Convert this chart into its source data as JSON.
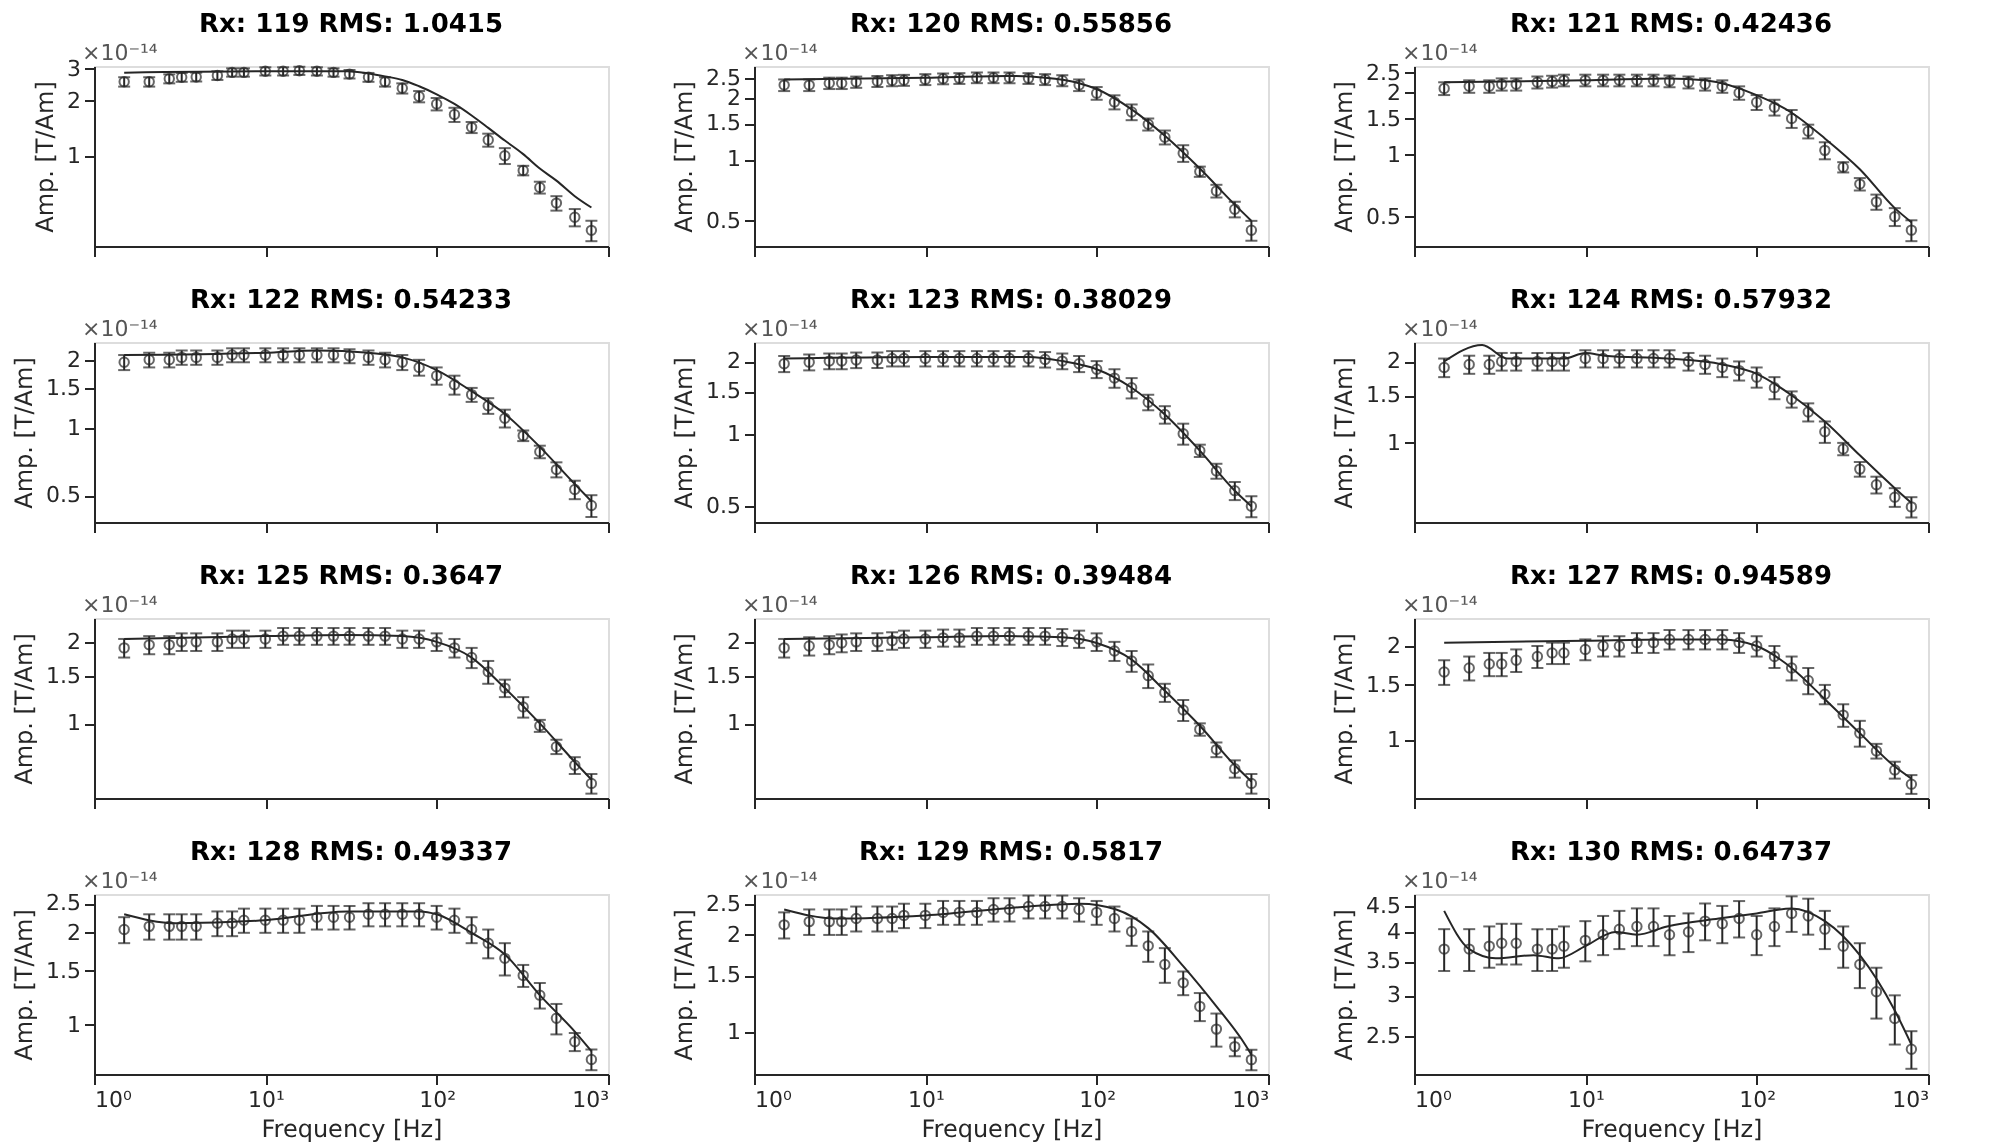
{
  "chart_data": [
    {
      "type": "scatter",
      "title": "Rx: 119 RMS: 1.0415",
      "ylabel": "Amp. [T/Am]",
      "annotations": [
        "×10⁻¹⁴"
      ],
      "log": "xy",
      "grid": false,
      "tick_labels": "y",
      "xlim": [
        1,
        1000
      ],
      "xticks": [
        {
          "value": 1,
          "label": null
        },
        {
          "value": 10,
          "label": null
        },
        {
          "value": 100,
          "label": null
        },
        {
          "value": 1000,
          "label": null
        }
      ],
      "ylim": [
        0.32,
        3.1
      ],
      "yticks": [
        1,
        2,
        3
      ],
      "x": [
        1.5,
        2.1,
        2.75,
        3.25,
        3.95,
        5.25,
        6.4,
        7.5,
        10,
        12.7,
        15.8,
        20,
        25,
        31,
        40,
        50,
        63,
        79,
        100,
        127,
        160,
        200,
        250,
        320,
        400,
        500,
        640,
        800
      ],
      "series": [
        {
          "type": "scatter",
          "marker": "circle",
          "color": "#262626",
          "values": [
            2.54,
            2.54,
            2.64,
            2.69,
            2.7,
            2.75,
            2.86,
            2.86,
            2.9,
            2.9,
            2.92,
            2.9,
            2.86,
            2.8,
            2.69,
            2.54,
            2.34,
            2.11,
            1.92,
            1.68,
            1.43,
            1.22,
            1.0,
            0.83,
            0.67,
            0.55,
            0.46,
            0.39
          ],
          "errors": [
            0.15,
            0.15,
            0.15,
            0.15,
            0.15,
            0.15,
            0.15,
            0.15,
            0.15,
            0.15,
            0.15,
            0.15,
            0.15,
            0.15,
            0.15,
            0.15,
            0.15,
            0.15,
            0.15,
            0.15,
            0.1,
            0.1,
            0.1,
            0.05,
            0.05,
            0.05,
            0.05,
            0.05
          ]
        },
        {
          "type": "line",
          "color": "#262626",
          "x": [
            1.5,
            10,
            30,
            40,
            50,
            63,
            79,
            100,
            127,
            160,
            200,
            250,
            320,
            400,
            500,
            640,
            800
          ],
          "values": [
            2.85,
            2.9,
            2.9,
            2.82,
            2.72,
            2.6,
            2.4,
            2.17,
            1.92,
            1.66,
            1.42,
            1.21,
            1.02,
            0.85,
            0.73,
            0.6,
            0.52
          ]
        }
      ]
    },
    {
      "type": "scatter",
      "title": "Rx: 120 RMS: 0.55856",
      "ylabel": "Amp. [T/Am]",
      "annotations": [
        "×10⁻¹⁴"
      ],
      "log": "xy",
      "grid": false,
      "tick_labels": "y",
      "xlim": [
        1,
        1000
      ],
      "xticks": [
        {
          "value": 1,
          "label": null
        },
        {
          "value": 10,
          "label": null
        },
        {
          "value": 100,
          "label": null
        },
        {
          "value": 1000,
          "label": null
        }
      ],
      "ylim": [
        0.377,
        2.85
      ],
      "yticks": [
        0.5,
        1,
        1.5,
        2,
        2.5
      ],
      "x": [
        1.5,
        2.1,
        2.75,
        3.25,
        3.95,
        5.25,
        6.4,
        7.5,
        10,
        12.7,
        15.8,
        20,
        25,
        31,
        40,
        50,
        63,
        79,
        100,
        127,
        160,
        200,
        250,
        320,
        400,
        500,
        640,
        800
      ],
      "series": [
        {
          "type": "scatter",
          "marker": "circle",
          "color": "#262626",
          "values": [
            2.3,
            2.3,
            2.35,
            2.35,
            2.38,
            2.4,
            2.42,
            2.43,
            2.45,
            2.47,
            2.48,
            2.5,
            2.5,
            2.5,
            2.48,
            2.45,
            2.42,
            2.3,
            2.1,
            1.9,
            1.7,
            1.48,
            1.28,
            1.07,
            0.87,
            0.7,
            0.57,
            0.45
          ],
          "errors": [
            0.15,
            0.15,
            0.15,
            0.15,
            0.15,
            0.15,
            0.15,
            0.15,
            0.15,
            0.15,
            0.15,
            0.15,
            0.15,
            0.15,
            0.15,
            0.15,
            0.15,
            0.15,
            0.15,
            0.15,
            0.15,
            0.1,
            0.1,
            0.1,
            0.05,
            0.05,
            0.05,
            0.05
          ]
        },
        {
          "type": "line",
          "color": "#262626",
          "x": [
            1.5,
            10,
            30,
            50,
            79,
            100,
            160,
            250,
            400,
            640,
            800
          ],
          "values": [
            2.45,
            2.5,
            2.55,
            2.5,
            2.35,
            2.2,
            1.75,
            1.3,
            0.9,
            0.6,
            0.5
          ]
        }
      ]
    },
    {
      "type": "scatter",
      "title": "Rx: 121 RMS: 0.42436",
      "ylabel": "Amp. [T/Am]",
      "annotations": [
        "×10⁻¹⁴"
      ],
      "log": "xy",
      "grid": false,
      "tick_labels": "y",
      "xlim": [
        1,
        1000
      ],
      "xticks": [
        {
          "value": 1,
          "label": null
        },
        {
          "value": 10,
          "label": null
        },
        {
          "value": 100,
          "label": null
        },
        {
          "value": 1000,
          "label": null
        }
      ],
      "ylim": [
        0.36,
        2.7
      ],
      "yticks": [
        0.5,
        1,
        1.5,
        2,
        2.5
      ],
      "x": [
        1.5,
        2.1,
        2.75,
        3.25,
        3.95,
        5.25,
        6.4,
        7.5,
        10,
        12.7,
        15.8,
        20,
        25,
        31,
        40,
        50,
        63,
        79,
        100,
        127,
        160,
        200,
        250,
        320,
        400,
        500,
        640,
        800
      ],
      "series": [
        {
          "type": "scatter",
          "marker": "circle",
          "color": "#262626",
          "values": [
            2.1,
            2.15,
            2.15,
            2.2,
            2.2,
            2.25,
            2.27,
            2.3,
            2.3,
            2.3,
            2.3,
            2.3,
            2.3,
            2.28,
            2.25,
            2.2,
            2.15,
            2.0,
            1.8,
            1.7,
            1.5,
            1.3,
            1.05,
            0.87,
            0.72,
            0.59,
            0.5,
            0.43
          ],
          "errors": [
            0.15,
            0.15,
            0.15,
            0.15,
            0.15,
            0.15,
            0.15,
            0.15,
            0.15,
            0.15,
            0.15,
            0.15,
            0.15,
            0.15,
            0.15,
            0.15,
            0.15,
            0.15,
            0.15,
            0.15,
            0.15,
            0.1,
            0.1,
            0.05,
            0.05,
            0.05,
            0.05,
            0.05
          ]
        },
        {
          "type": "line",
          "color": "#262626",
          "x": [
            1.5,
            10,
            30,
            50,
            100,
            160,
            250,
            400,
            640,
            800
          ],
          "values": [
            2.25,
            2.3,
            2.35,
            2.3,
            1.95,
            1.6,
            1.2,
            0.85,
            0.55,
            0.47
          ]
        }
      ]
    },
    {
      "type": "scatter",
      "title": "Rx: 122 RMS: 0.54233",
      "ylabel": "Amp. [T/Am]",
      "annotations": [
        "×10⁻¹⁴"
      ],
      "log": "xy",
      "grid": false,
      "tick_labels": "y",
      "xlim": [
        1,
        1000
      ],
      "xticks": [
        {
          "value": 1,
          "label": null
        },
        {
          "value": 10,
          "label": null
        },
        {
          "value": 100,
          "label": null
        },
        {
          "value": 1000,
          "label": null
        }
      ],
      "ylim": [
        0.38,
        2.4
      ],
      "yticks": [
        0.5,
        1,
        1.5,
        2
      ],
      "x": [
        1.5,
        2.1,
        2.75,
        3.25,
        3.95,
        5.25,
        6.4,
        7.5,
        10,
        12.7,
        15.8,
        20,
        25,
        31,
        40,
        50,
        63,
        79,
        100,
        127,
        160,
        200,
        250,
        320,
        400,
        500,
        640,
        800
      ],
      "series": [
        {
          "type": "scatter",
          "marker": "circle",
          "color": "#262626",
          "values": [
            1.95,
            2.0,
            2.0,
            2.05,
            2.05,
            2.05,
            2.1,
            2.1,
            2.1,
            2.1,
            2.1,
            2.1,
            2.1,
            2.08,
            2.05,
            2.0,
            1.95,
            1.85,
            1.7,
            1.55,
            1.4,
            1.25,
            1.1,
            0.92,
            0.78,
            0.65,
            0.53,
            0.45
          ],
          "errors": [
            0.15,
            0.15,
            0.15,
            0.15,
            0.15,
            0.15,
            0.15,
            0.15,
            0.15,
            0.15,
            0.15,
            0.15,
            0.15,
            0.15,
            0.15,
            0.15,
            0.15,
            0.15,
            0.15,
            0.15,
            0.1,
            0.1,
            0.1,
            0.05,
            0.05,
            0.05,
            0.05,
            0.05
          ]
        },
        {
          "type": "line",
          "color": "#262626",
          "x": [
            1.5,
            10,
            20,
            40,
            63,
            100,
            160,
            250,
            400,
            640,
            800
          ],
          "values": [
            2.1,
            2.15,
            2.2,
            2.15,
            2.05,
            1.8,
            1.45,
            1.15,
            0.82,
            0.56,
            0.47
          ]
        }
      ]
    },
    {
      "type": "scatter",
      "title": "Rx: 123 RMS: 0.38029",
      "ylabel": "Amp. [T/Am]",
      "annotations": [
        "×10⁻¹⁴"
      ],
      "log": "xy",
      "grid": false,
      "tick_labels": "y",
      "xlim": [
        1,
        1000
      ],
      "xticks": [
        {
          "value": 1,
          "label": null
        },
        {
          "value": 10,
          "label": null
        },
        {
          "value": 100,
          "label": null
        },
        {
          "value": 1000,
          "label": null
        }
      ],
      "ylim": [
        0.43,
        2.4
      ],
      "yticks": [
        0.5,
        1,
        1.5,
        2
      ],
      "x": [
        1.5,
        2.1,
        2.75,
        3.25,
        3.95,
        5.25,
        6.4,
        7.5,
        10,
        12.7,
        15.8,
        20,
        25,
        31,
        40,
        50,
        63,
        79,
        100,
        127,
        160,
        200,
        250,
        320,
        400,
        500,
        640,
        800
      ],
      "series": [
        {
          "type": "scatter",
          "marker": "circle",
          "color": "#262626",
          "values": [
            1.95,
            1.98,
            2.0,
            2.0,
            2.02,
            2.02,
            2.05,
            2.05,
            2.05,
            2.05,
            2.05,
            2.05,
            2.05,
            2.05,
            2.05,
            2.03,
            2.0,
            1.95,
            1.85,
            1.7,
            1.55,
            1.35,
            1.2,
            1.0,
            0.85,
            0.7,
            0.58,
            0.5
          ],
          "errors": [
            0.15,
            0.15,
            0.15,
            0.15,
            0.15,
            0.15,
            0.15,
            0.15,
            0.15,
            0.15,
            0.15,
            0.15,
            0.15,
            0.15,
            0.15,
            0.15,
            0.15,
            0.15,
            0.15,
            0.15,
            0.15,
            0.1,
            0.1,
            0.1,
            0.05,
            0.05,
            0.05,
            0.05
          ]
        },
        {
          "type": "line",
          "color": "#262626",
          "x": [
            1.5,
            10,
            40,
            63,
            100,
            160,
            250,
            400,
            640,
            800
          ],
          "values": [
            2.05,
            2.08,
            2.08,
            2.0,
            1.85,
            1.55,
            1.2,
            0.85,
            0.58,
            0.5
          ]
        }
      ]
    },
    {
      "type": "scatter",
      "title": "Rx: 124 RMS: 0.57932",
      "ylabel": "Amp. [T/Am]",
      "annotations": [
        "×10⁻¹⁴"
      ],
      "log": "xy",
      "grid": false,
      "tick_labels": "y",
      "xlim": [
        1,
        1000
      ],
      "xticks": [
        {
          "value": 1,
          "label": null
        },
        {
          "value": 10,
          "label": null
        },
        {
          "value": 100,
          "label": null
        },
        {
          "value": 1000,
          "label": null
        }
      ],
      "ylim": [
        0.51,
        2.36
      ],
      "yticks": [
        1,
        1.5,
        2
      ],
      "x": [
        1.5,
        2.1,
        2.75,
        3.25,
        3.95,
        5.25,
        6.4,
        7.5,
        10,
        12.7,
        15.8,
        20,
        25,
        31,
        40,
        50,
        63,
        79,
        100,
        127,
        160,
        200,
        250,
        320,
        400,
        500,
        640,
        800
      ],
      "series": [
        {
          "type": "scatter",
          "marker": "circle",
          "color": "#262626",
          "values": [
            1.9,
            1.95,
            1.95,
            2.0,
            2.0,
            2.0,
            2.0,
            2.0,
            2.05,
            2.05,
            2.05,
            2.05,
            2.05,
            2.05,
            2.0,
            1.95,
            1.9,
            1.85,
            1.75,
            1.6,
            1.45,
            1.3,
            1.1,
            0.95,
            0.8,
            0.7,
            0.63,
            0.58
          ],
          "errors": [
            0.15,
            0.15,
            0.15,
            0.15,
            0.15,
            0.15,
            0.15,
            0.15,
            0.15,
            0.15,
            0.15,
            0.15,
            0.15,
            0.15,
            0.15,
            0.15,
            0.15,
            0.15,
            0.15,
            0.15,
            0.1,
            0.1,
            0.1,
            0.05,
            0.05,
            0.05,
            0.05,
            0.05
          ]
        },
        {
          "type": "line",
          "color": "#262626",
          "x": [
            1.5,
            2.5,
            3.5,
            5,
            7.5,
            10,
            13,
            30,
            63,
            100,
            160,
            250,
            400,
            640,
            800
          ],
          "values": [
            2.0,
            2.3,
            2.05,
            2.05,
            2.05,
            2.15,
            2.1,
            2.05,
            1.95,
            1.8,
            1.5,
            1.2,
            0.9,
            0.68,
            0.6
          ]
        }
      ]
    },
    {
      "type": "scatter",
      "title": "Rx: 125 RMS: 0.3647",
      "ylabel": "Amp. [T/Am]",
      "annotations": [
        "×10⁻¹⁴"
      ],
      "log": "xy",
      "grid": false,
      "tick_labels": "y",
      "xlim": [
        1,
        1000
      ],
      "xticks": [
        {
          "value": 1,
          "label": null
        },
        {
          "value": 10,
          "label": null
        },
        {
          "value": 100,
          "label": null
        },
        {
          "value": 1000,
          "label": null
        }
      ],
      "ylim": [
        0.53,
        2.45
      ],
      "yticks": [
        1,
        1.5,
        2
      ],
      "x": [
        1.5,
        2.1,
        2.75,
        3.25,
        3.95,
        5.25,
        6.4,
        7.5,
        10,
        12.7,
        15.8,
        20,
        25,
        31,
        40,
        50,
        63,
        79,
        100,
        127,
        160,
        200,
        250,
        320,
        400,
        500,
        640,
        800
      ],
      "series": [
        {
          "type": "scatter",
          "marker": "circle",
          "color": "#262626",
          "values": [
            1.9,
            1.95,
            1.95,
            2.0,
            2.0,
            2.0,
            2.05,
            2.05,
            2.05,
            2.1,
            2.1,
            2.1,
            2.1,
            2.1,
            2.1,
            2.1,
            2.05,
            2.05,
            2.0,
            1.9,
            1.75,
            1.55,
            1.35,
            1.15,
            0.98,
            0.82,
            0.7,
            0.6
          ],
          "errors": [
            0.15,
            0.15,
            0.15,
            0.15,
            0.15,
            0.15,
            0.15,
            0.15,
            0.15,
            0.15,
            0.15,
            0.15,
            0.15,
            0.15,
            0.15,
            0.15,
            0.15,
            0.15,
            0.15,
            0.15,
            0.15,
            0.15,
            0.1,
            0.1,
            0.05,
            0.05,
            0.05,
            0.05
          ]
        },
        {
          "type": "line",
          "color": "#262626",
          "x": [
            1.5,
            10,
            30,
            63,
            100,
            160,
            250,
            400,
            640,
            800
          ],
          "values": [
            2.05,
            2.1,
            2.12,
            2.1,
            2.0,
            1.75,
            1.35,
            1.0,
            0.72,
            0.62
          ]
        }
      ]
    },
    {
      "type": "scatter",
      "title": "Rx: 126 RMS: 0.39484",
      "ylabel": "Amp. [T/Am]",
      "annotations": [
        "×10⁻¹⁴"
      ],
      "log": "xy",
      "grid": false,
      "tick_labels": "y",
      "xlim": [
        1,
        1000
      ],
      "xticks": [
        {
          "value": 1,
          "label": null
        },
        {
          "value": 10,
          "label": null
        },
        {
          "value": 100,
          "label": null
        },
        {
          "value": 1000,
          "label": null
        }
      ],
      "ylim": [
        0.53,
        2.45
      ],
      "yticks": [
        1,
        1.5,
        2
      ],
      "x": [
        1.5,
        2.1,
        2.75,
        3.25,
        3.95,
        5.25,
        6.4,
        7.5,
        10,
        12.7,
        15.8,
        20,
        25,
        31,
        40,
        50,
        63,
        79,
        100,
        127,
        160,
        200,
        250,
        320,
        400,
        500,
        640,
        800
      ],
      "series": [
        {
          "type": "scatter",
          "marker": "circle",
          "color": "#262626",
          "values": [
            1.9,
            1.93,
            1.95,
            1.98,
            2.0,
            2.0,
            2.02,
            2.05,
            2.05,
            2.07,
            2.07,
            2.1,
            2.1,
            2.1,
            2.1,
            2.1,
            2.08,
            2.05,
            2.0,
            1.85,
            1.7,
            1.5,
            1.3,
            1.12,
            0.95,
            0.8,
            0.68,
            0.6
          ],
          "errors": [
            0.15,
            0.15,
            0.15,
            0.15,
            0.15,
            0.15,
            0.15,
            0.15,
            0.15,
            0.15,
            0.15,
            0.15,
            0.15,
            0.15,
            0.15,
            0.15,
            0.15,
            0.15,
            0.15,
            0.15,
            0.15,
            0.15,
            0.1,
            0.1,
            0.05,
            0.05,
            0.05,
            0.05
          ]
        },
        {
          "type": "line",
          "color": "#262626",
          "x": [
            1.5,
            10,
            30,
            63,
            100,
            160,
            250,
            400,
            640,
            800
          ],
          "values": [
            2.05,
            2.08,
            2.1,
            2.08,
            1.98,
            1.72,
            1.32,
            0.98,
            0.7,
            0.61
          ]
        }
      ]
    },
    {
      "type": "scatter",
      "title": "Rx: 127 RMS: 0.94589",
      "ylabel": "Amp. [T/Am]",
      "annotations": [
        "×10⁻¹⁴"
      ],
      "log": "xy",
      "grid": false,
      "tick_labels": "y",
      "xlim": [
        1,
        1000
      ],
      "xticks": [
        {
          "value": 1,
          "label": null
        },
        {
          "value": 10,
          "label": null
        },
        {
          "value": 100,
          "label": null
        },
        {
          "value": 1000,
          "label": null
        }
      ],
      "ylim": [
        0.65,
        2.46
      ],
      "yticks": [
        1,
        1.5,
        2
      ],
      "x": [
        1.5,
        2.1,
        2.75,
        3.25,
        3.95,
        5.25,
        6.4,
        7.5,
        10,
        12.7,
        15.8,
        20,
        25,
        31,
        40,
        50,
        63,
        79,
        100,
        127,
        160,
        200,
        250,
        320,
        400,
        500,
        640,
        800
      ],
      "series": [
        {
          "type": "scatter",
          "marker": "circle",
          "color": "#262626",
          "values": [
            1.65,
            1.7,
            1.75,
            1.75,
            1.8,
            1.85,
            1.9,
            1.9,
            1.95,
            2.0,
            2.0,
            2.05,
            2.05,
            2.1,
            2.1,
            2.1,
            2.1,
            2.05,
            2.0,
            1.85,
            1.7,
            1.55,
            1.4,
            1.2,
            1.05,
            0.92,
            0.8,
            0.72
          ],
          "errors": [
            0.15,
            0.15,
            0.15,
            0.15,
            0.15,
            0.15,
            0.15,
            0.15,
            0.15,
            0.15,
            0.15,
            0.15,
            0.15,
            0.15,
            0.15,
            0.15,
            0.15,
            0.15,
            0.15,
            0.15,
            0.15,
            0.15,
            0.1,
            0.1,
            0.1,
            0.05,
            0.05,
            0.05
          ]
        },
        {
          "type": "line",
          "color": "#262626",
          "x": [
            1.5,
            10,
            30,
            63,
            100,
            160,
            250,
            400,
            640,
            800
          ],
          "values": [
            2.05,
            2.08,
            2.1,
            2.1,
            2.0,
            1.7,
            1.35,
            1.05,
            0.82,
            0.75
          ]
        }
      ]
    },
    {
      "type": "scatter",
      "title": "Rx: 128 RMS: 0.49337",
      "ylabel": "Amp. [T/Am]",
      "xlabel": "Frequency [Hz]",
      "annotations": [
        "×10⁻¹⁴"
      ],
      "log": "xy",
      "grid": false,
      "xlim": [
        1,
        1000
      ],
      "xticks": [
        {
          "value": 1,
          "label": "10⁰"
        },
        {
          "value": 10,
          "label": "10¹"
        },
        {
          "value": 100,
          "label": "10²"
        },
        {
          "value": 1000,
          "label": "10³"
        }
      ],
      "ylim": [
        0.69,
        2.68
      ],
      "yticks": [
        1,
        1.5,
        2,
        2.5
      ],
      "x": [
        1.5,
        2.1,
        2.75,
        3.25,
        3.95,
        5.25,
        6.4,
        7.5,
        10,
        12.7,
        15.8,
        20,
        25,
        31,
        40,
        50,
        63,
        79,
        100,
        127,
        160,
        200,
        250,
        320,
        400,
        500,
        640,
        800
      ],
      "series": [
        {
          "type": "scatter",
          "marker": "circle",
          "color": "#262626",
          "values": [
            2.05,
            2.1,
            2.1,
            2.1,
            2.1,
            2.15,
            2.15,
            2.2,
            2.2,
            2.2,
            2.2,
            2.25,
            2.25,
            2.25,
            2.3,
            2.3,
            2.3,
            2.3,
            2.25,
            2.2,
            2.05,
            1.85,
            1.65,
            1.45,
            1.25,
            1.05,
            0.88,
            0.77
          ],
          "errors": [
            0.2,
            0.2,
            0.2,
            0.2,
            0.2,
            0.2,
            0.2,
            0.2,
            0.2,
            0.2,
            0.2,
            0.2,
            0.2,
            0.2,
            0.2,
            0.2,
            0.2,
            0.2,
            0.2,
            0.2,
            0.2,
            0.2,
            0.2,
            0.12,
            0.12,
            0.12,
            0.06,
            0.06
          ]
        },
        {
          "type": "line",
          "color": "#262626",
          "x": [
            1.5,
            3,
            10,
            30,
            80,
            100,
            160,
            250,
            400,
            640,
            800
          ],
          "values": [
            2.3,
            2.15,
            2.2,
            2.35,
            2.35,
            2.3,
            2.0,
            1.7,
            1.25,
            0.95,
            0.82
          ]
        }
      ]
    },
    {
      "type": "scatter",
      "title": "Rx: 129 RMS: 0.5817",
      "ylabel": "Amp. [T/Am]",
      "xlabel": "Frequency [Hz]",
      "annotations": [
        "×10⁻¹⁴"
      ],
      "log": "xy",
      "grid": false,
      "xlim": [
        1,
        1000
      ],
      "xticks": [
        {
          "value": 1,
          "label": "10⁰"
        },
        {
          "value": 10,
          "label": "10¹"
        },
        {
          "value": 100,
          "label": "10²"
        },
        {
          "value": 1000,
          "label": "10³"
        }
      ],
      "ylim": [
        0.74,
        2.68
      ],
      "yticks": [
        1,
        1.5,
        2,
        2.5
      ],
      "x": [
        1.5,
        2.1,
        2.75,
        3.25,
        3.95,
        5.25,
        6.4,
        7.5,
        10,
        12.7,
        15.8,
        20,
        25,
        31,
        40,
        50,
        63,
        79,
        100,
        127,
        160,
        200,
        250,
        320,
        400,
        500,
        640,
        800
      ],
      "series": [
        {
          "type": "scatter",
          "marker": "circle",
          "color": "#262626",
          "values": [
            2.15,
            2.2,
            2.2,
            2.2,
            2.25,
            2.25,
            2.25,
            2.3,
            2.3,
            2.35,
            2.35,
            2.35,
            2.4,
            2.4,
            2.45,
            2.45,
            2.45,
            2.4,
            2.35,
            2.25,
            2.05,
            1.85,
            1.62,
            1.42,
            1.2,
            1.02,
            0.9,
            0.82
          ],
          "errors": [
            0.2,
            0.2,
            0.2,
            0.2,
            0.2,
            0.2,
            0.2,
            0.2,
            0.2,
            0.2,
            0.2,
            0.2,
            0.2,
            0.2,
            0.2,
            0.2,
            0.2,
            0.2,
            0.2,
            0.2,
            0.2,
            0.2,
            0.2,
            0.12,
            0.12,
            0.12,
            0.06,
            0.06
          ]
        },
        {
          "type": "line",
          "color": "#262626",
          "x": [
            1.5,
            3,
            10,
            40,
            80,
            130,
            200,
            320,
            500,
            700,
            800
          ],
          "values": [
            2.4,
            2.25,
            2.3,
            2.45,
            2.5,
            2.4,
            2.1,
            1.6,
            1.2,
            0.95,
            0.85
          ]
        }
      ]
    },
    {
      "type": "scatter",
      "title": "Rx: 130 RMS: 0.64737",
      "ylabel": "Amp. [T/Am]",
      "xlabel": "Frequency [Hz]",
      "annotations": [
        "×10⁻¹⁴"
      ],
      "log": "xy",
      "grid": false,
      "xlim": [
        1,
        1000
      ],
      "xticks": [
        {
          "value": 1,
          "label": "10⁰"
        },
        {
          "value": 10,
          "label": "10¹"
        },
        {
          "value": 100,
          "label": "10²"
        },
        {
          "value": 1000,
          "label": "10³"
        }
      ],
      "ylim": [
        2.1,
        4.75
      ],
      "yticks": [
        2.5,
        3,
        3.5,
        4,
        4.5
      ],
      "x": [
        1.5,
        2.1,
        2.75,
        3.25,
        3.95,
        5.25,
        6.4,
        7.5,
        10,
        12.7,
        15.8,
        20,
        25,
        31,
        40,
        50,
        63,
        79,
        100,
        127,
        160,
        200,
        250,
        320,
        400,
        500,
        640,
        800
      ],
      "series": [
        {
          "type": "scatter",
          "marker": "circle",
          "color": "#262626",
          "values": [
            3.7,
            3.7,
            3.75,
            3.8,
            3.8,
            3.7,
            3.7,
            3.75,
            3.85,
            3.95,
            4.05,
            4.1,
            4.1,
            3.95,
            4.0,
            4.2,
            4.15,
            4.25,
            3.95,
            4.1,
            4.35,
            4.3,
            4.05,
            3.75,
            3.45,
            3.05,
            2.7,
            2.35
          ],
          "errors": [
            0.35,
            0.35,
            0.35,
            0.35,
            0.35,
            0.35,
            0.35,
            0.35,
            0.35,
            0.35,
            0.35,
            0.35,
            0.35,
            0.35,
            0.35,
            0.35,
            0.35,
            0.35,
            0.35,
            0.35,
            0.35,
            0.35,
            0.35,
            0.35,
            0.35,
            0.35,
            0.3,
            0.2
          ]
        },
        {
          "type": "line",
          "color": "#262626",
          "x": [
            1.5,
            2.1,
            3,
            5,
            7,
            10,
            15,
            20,
            30,
            60,
            100,
            160,
            250,
            400,
            640,
            800
          ],
          "values": [
            4.4,
            3.7,
            3.55,
            3.6,
            3.55,
            3.75,
            4.0,
            3.95,
            4.1,
            4.25,
            4.35,
            4.45,
            4.2,
            3.6,
            2.8,
            2.4
          ]
        }
      ]
    }
  ]
}
